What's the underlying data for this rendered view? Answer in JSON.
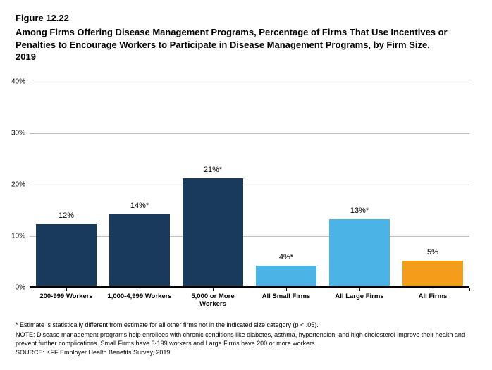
{
  "figure_number": "Figure 12.22",
  "title": "Among Firms Offering Disease Management Programs, Percentage of Firms That Use Incentives or Penalties to Encourage Workers to Participate in Disease Management Programs, by Firm Size, 2019",
  "chart": {
    "type": "bar",
    "ylim_max": 40,
    "ytick_step": 10,
    "ytick_suffix": "%",
    "grid_color": "#bfbfbf",
    "baseline_color": "#000000",
    "background_color": "#ffffff",
    "bar_label_fontsize": 11,
    "xlabel_fontsize": 9.5,
    "ylabel_fontsize": 10,
    "bars": [
      {
        "category": "200-999 Workers",
        "value": 12,
        "label": "12%",
        "color": "#1a3a5c"
      },
      {
        "category": "1,000-4,999 Workers",
        "value": 14,
        "label": "14%*",
        "color": "#1a3a5c"
      },
      {
        "category": "5,000 or More Workers",
        "value": 21,
        "label": "21%*",
        "color": "#1a3a5c"
      },
      {
        "category": "All Small Firms",
        "value": 4,
        "label": "4%*",
        "color": "#4bb3e6"
      },
      {
        "category": "All Large Firms",
        "value": 13,
        "label": "13%*",
        "color": "#4bb3e6"
      },
      {
        "category": "All Firms",
        "value": 5,
        "label": "5%",
        "color": "#f59c1a"
      }
    ]
  },
  "footnotes": {
    "asterisk": "* Estimate is statistically different from estimate for all other firms not in the indicated size category (p < .05).",
    "note": "NOTE: Disease management programs help enrollees with chronic conditions like diabetes, asthma, hypertension, and high cholesterol improve their health and prevent further complications. Small Firms have 3-199 workers and Large Firms have 200 or more workers.",
    "source": "SOURCE: KFF Employer Health Benefits Survey, 2019"
  }
}
